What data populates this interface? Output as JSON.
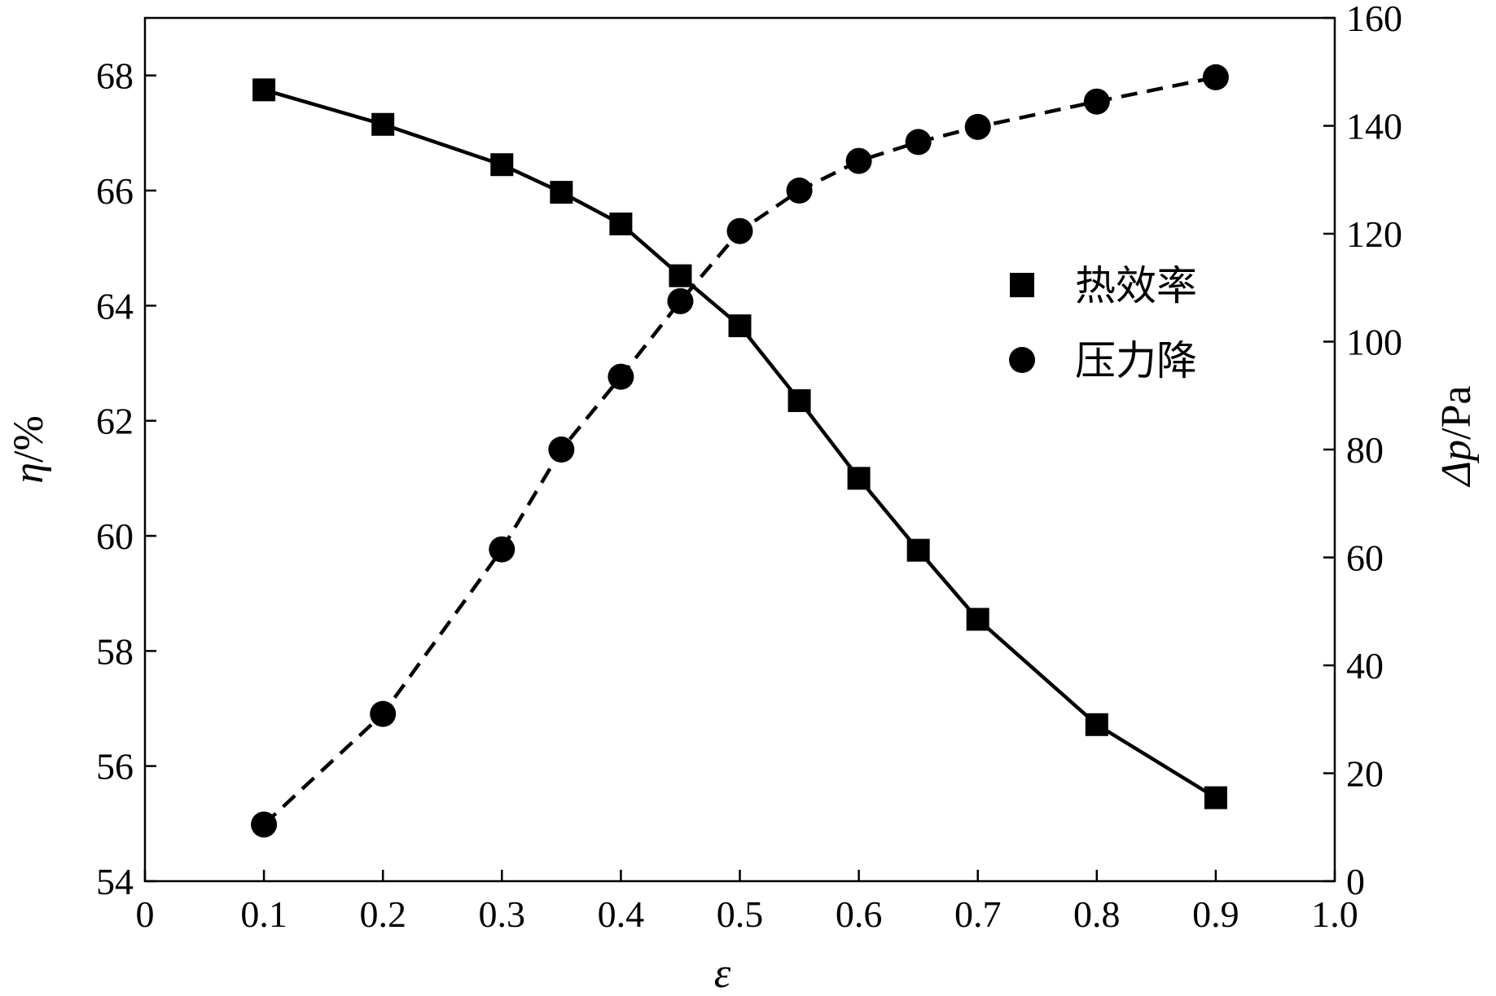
{
  "chart_data": {
    "type": "line",
    "x_axis": {
      "label": "ε",
      "range": [
        0,
        1.0
      ],
      "ticks": [
        0,
        0.1,
        0.2,
        0.3,
        0.4,
        0.5,
        0.6,
        0.7,
        0.8,
        0.9,
        1.0
      ],
      "tick_labels": [
        "0",
        "0.1",
        "0.2",
        "0.3",
        "0.4",
        "0.5",
        "0.6",
        "0.7",
        "0.8",
        "0.9",
        "1.0"
      ]
    },
    "y_axis_left": {
      "label_symbol": "η",
      "label_unit": "/%",
      "range": [
        54,
        69
      ],
      "ticks": [
        54,
        56,
        58,
        60,
        62,
        64,
        66,
        68
      ]
    },
    "y_axis_right": {
      "label_symbol": "Δp",
      "label_unit": "/Pa",
      "range": [
        0,
        160
      ],
      "ticks": [
        0,
        20,
        40,
        60,
        80,
        100,
        120,
        140,
        160
      ]
    },
    "legend_position": "right-middle",
    "grid": false,
    "series": [
      {
        "name": "热效率",
        "axis": "left",
        "marker": "square",
        "line_style": "solid",
        "x": [
          0.1,
          0.2,
          0.3,
          0.35,
          0.4,
          0.45,
          0.5,
          0.55,
          0.6,
          0.65,
          0.7,
          0.8,
          0.9
        ],
        "y": [
          67.75,
          67.15,
          66.45,
          65.97,
          65.42,
          64.52,
          63.65,
          62.35,
          61.0,
          59.75,
          58.55,
          56.72,
          55.45
        ]
      },
      {
        "name": "压力降",
        "axis": "right",
        "marker": "circle",
        "line_style": "dashed",
        "x": [
          0.1,
          0.2,
          0.3,
          0.35,
          0.4,
          0.45,
          0.5,
          0.55,
          0.6,
          0.65,
          0.7,
          0.8,
          0.9
        ],
        "y": [
          10.5,
          31.0,
          61.5,
          80.0,
          93.5,
          107.5,
          120.5,
          128.0,
          133.5,
          137.0,
          139.8,
          144.5,
          149.0
        ]
      }
    ]
  }
}
